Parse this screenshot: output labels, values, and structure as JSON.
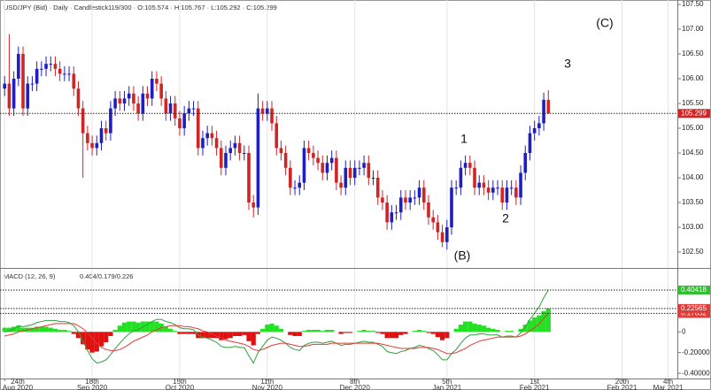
{
  "chart_data": [
    {
      "type": "candlestick",
      "title": "USD/JPY (Bid) · Daily · Candlestick",
      "subtitle": "119/300 · O:105.574 · H:105.767 · L:105.292 · C:105.299",
      "up_color": "#1f1fc0",
      "down_color": "#d02525",
      "open": [
        105.8,
        105.9,
        105.4,
        106.0,
        106.5,
        105.4,
        105.9,
        105.9,
        106.2,
        106.2,
        106.3,
        106.3,
        106.2,
        106.1,
        106.1,
        106.1,
        105.8,
        105.4,
        104.9,
        104.7,
        104.6,
        104.7,
        105.0,
        104.9,
        105.4,
        105.6,
        105.5,
        105.6,
        105.7,
        105.5,
        105.3,
        105.7,
        105.6,
        106.0,
        105.9,
        105.6,
        105.3,
        105.5,
        105.2,
        105.0,
        105.3,
        105.4,
        105.4,
        104.6,
        104.8,
        104.9,
        104.8,
        104.6,
        104.2,
        104.5,
        104.6,
        104.7,
        104.5,
        104.5,
        103.5,
        103.4,
        105.4,
        105.3,
        105.4,
        105.1,
        104.6,
        104.5,
        104.2,
        103.8,
        103.8,
        103.9,
        104.6,
        104.5,
        104.4,
        104.3,
        104.1,
        104.3,
        104.4,
        103.9,
        103.8,
        104.2,
        104.0,
        104.2,
        104.2,
        104.3,
        104.0,
        104.0,
        103.6,
        103.5,
        103.1,
        103.3,
        103.3,
        103.6,
        103.5,
        103.6,
        103.6,
        103.8,
        103.5,
        103.2,
        103.1,
        102.9,
        102.7,
        103.0,
        103.8,
        103.8,
        104.2,
        104.3,
        104.2,
        103.8,
        103.9,
        103.8,
        103.7,
        103.8,
        103.8,
        103.5,
        103.8,
        103.8,
        103.6,
        104.1,
        104.5,
        104.9,
        105.0,
        105.1,
        105.574
      ],
      "high": [
        106.05,
        106.9,
        106.15,
        106.65,
        106.65,
        106.05,
        106.05,
        106.35,
        106.35,
        106.45,
        106.45,
        106.45,
        106.35,
        106.25,
        106.25,
        106.25,
        105.95,
        105.55,
        105.05,
        104.85,
        104.85,
        105.15,
        105.15,
        105.55,
        105.75,
        105.75,
        105.75,
        105.85,
        105.85,
        105.65,
        105.85,
        105.85,
        106.15,
        106.15,
        106.05,
        105.75,
        105.65,
        105.65,
        105.35,
        105.45,
        105.55,
        105.55,
        105.55,
        104.95,
        105.05,
        105.05,
        104.95,
        104.75,
        104.65,
        104.75,
        104.85,
        104.85,
        104.65,
        104.65,
        103.65,
        105.7,
        105.55,
        105.55,
        105.55,
        105.25,
        104.75,
        104.65,
        104.35,
        103.95,
        104.05,
        104.75,
        104.75,
        104.65,
        104.55,
        104.45,
        104.45,
        104.55,
        104.55,
        104.05,
        104.35,
        104.35,
        104.35,
        104.35,
        104.45,
        104.45,
        104.15,
        104.15,
        103.75,
        103.65,
        103.45,
        103.45,
        103.75,
        103.75,
        103.75,
        103.75,
        103.95,
        103.95,
        103.65,
        103.35,
        103.25,
        103.05,
        103.15,
        103.95,
        103.95,
        104.35,
        104.45,
        104.45,
        104.35,
        104.05,
        104.05,
        103.95,
        103.95,
        103.95,
        103.95,
        103.95,
        103.95,
        103.95,
        104.25,
        104.65,
        105.05,
        105.15,
        105.25,
        105.72,
        105.767
      ],
      "low": [
        105.65,
        105.25,
        105.25,
        105.85,
        105.25,
        105.25,
        105.75,
        105.75,
        106.05,
        106.05,
        106.15,
        106.05,
        105.95,
        105.95,
        105.95,
        105.65,
        105.25,
        104.0,
        104.55,
        104.45,
        104.45,
        104.55,
        104.75,
        104.75,
        105.25,
        105.35,
        105.35,
        105.45,
        105.35,
        105.15,
        105.15,
        105.45,
        105.45,
        105.75,
        105.45,
        105.15,
        105.15,
        105.05,
        104.85,
        104.85,
        105.15,
        105.25,
        104.45,
        104.45,
        104.65,
        104.65,
        104.45,
        104.05,
        104.05,
        104.35,
        104.45,
        104.35,
        104.35,
        103.35,
        103.2,
        103.25,
        105.15,
        105.15,
        104.95,
        104.45,
        104.35,
        104.05,
        103.65,
        103.65,
        103.65,
        103.75,
        104.35,
        104.25,
        104.15,
        103.95,
        103.95,
        104.15,
        103.75,
        103.65,
        103.65,
        103.85,
        103.85,
        104.05,
        104.05,
        103.85,
        103.85,
        103.45,
        103.35,
        102.95,
        102.95,
        103.15,
        103.15,
        103.35,
        103.35,
        103.45,
        103.45,
        103.35,
        103.05,
        102.95,
        102.75,
        102.6,
        102.55,
        102.85,
        103.65,
        103.65,
        104.05,
        104.05,
        103.65,
        103.65,
        103.65,
        103.55,
        103.55,
        103.65,
        103.35,
        103.35,
        103.65,
        103.45,
        103.45,
        103.95,
        104.35,
        104.75,
        104.85,
        104.95,
        105.292
      ],
      "close": [
        105.9,
        105.4,
        106.0,
        106.5,
        105.4,
        105.9,
        105.9,
        106.2,
        106.2,
        106.3,
        106.3,
        106.2,
        106.1,
        106.1,
        106.1,
        105.8,
        105.4,
        104.9,
        104.7,
        104.6,
        104.7,
        105.0,
        104.9,
        105.4,
        105.6,
        105.5,
        105.6,
        105.7,
        105.5,
        105.3,
        105.7,
        105.6,
        106.0,
        105.9,
        105.6,
        105.3,
        105.5,
        105.2,
        105.0,
        105.3,
        105.4,
        105.4,
        104.6,
        104.8,
        104.9,
        104.8,
        104.6,
        104.2,
        104.5,
        104.6,
        104.7,
        104.5,
        104.5,
        103.5,
        103.4,
        105.4,
        105.3,
        105.4,
        105.1,
        104.6,
        104.5,
        104.2,
        103.8,
        103.8,
        103.9,
        104.6,
        104.5,
        104.4,
        104.3,
        104.1,
        104.3,
        104.4,
        103.9,
        103.8,
        104.2,
        104.0,
        104.2,
        104.2,
        104.3,
        104.0,
        104.0,
        103.6,
        103.5,
        103.1,
        103.3,
        103.3,
        103.6,
        103.5,
        103.6,
        103.6,
        103.8,
        103.5,
        103.2,
        103.1,
        102.9,
        102.7,
        103.0,
        103.8,
        103.8,
        104.2,
        104.3,
        104.2,
        103.8,
        103.9,
        103.8,
        103.7,
        103.8,
        103.8,
        103.5,
        103.8,
        103.8,
        103.6,
        104.1,
        104.5,
        104.9,
        105.0,
        105.1,
        105.574,
        105.299
      ],
      "last_price_line": true,
      "annotations": [
        "(C)",
        "3",
        "1",
        "2",
        "(B)"
      ],
      "xlim": [
        -1,
        146
      ],
      "ylim": [
        102.5,
        107.5
      ],
      "yticks": [
        {
          "value": 102.5,
          "label": "102.50"
        },
        {
          "value": 103,
          "label": "103.00"
        },
        {
          "value": 103.5,
          "label": "103.50"
        },
        {
          "value": 104,
          "label": "104.00"
        },
        {
          "value": 104.5,
          "label": "104.50"
        },
        {
          "value": 105,
          "label": "105.00"
        },
        {
          "value": 105.5,
          "label": "105.50"
        },
        {
          "value": 106,
          "label": "106.00"
        },
        {
          "value": 106.5,
          "label": "106.50"
        },
        {
          "value": 107,
          "label": "107.00"
        },
        {
          "value": 107.5,
          "label": "107.50"
        }
      ],
      "grid": true
    },
    {
      "type": "macd",
      "title": "MACD (12, 26, 9)",
      "subtitle": "0.404/0.179/0.226",
      "series": [
        {
          "style": "line",
          "color": "#2e9e3e",
          "values": [
            0.0,
            0.01,
            0.03,
            0.06,
            0.05,
            0.06,
            0.07,
            0.09,
            0.1,
            0.11,
            0.11,
            0.11,
            0.1,
            0.1,
            0.09,
            0.06,
            0.0,
            -0.09,
            -0.18,
            -0.26,
            -0.3,
            -0.29,
            -0.27,
            -0.22,
            -0.16,
            -0.11,
            -0.06,
            -0.02,
            0.01,
            0.02,
            0.05,
            0.07,
            0.1,
            0.12,
            0.12,
            0.1,
            0.09,
            0.07,
            0.04,
            0.03,
            0.03,
            0.02,
            -0.03,
            -0.05,
            -0.06,
            -0.08,
            -0.1,
            -0.14,
            -0.15,
            -0.15,
            -0.14,
            -0.15,
            -0.15,
            -0.23,
            -0.3,
            -0.2,
            -0.14,
            -0.08,
            -0.05,
            -0.06,
            -0.08,
            -0.11,
            -0.15,
            -0.17,
            -0.18,
            -0.13,
            -0.11,
            -0.1,
            -0.1,
            -0.11,
            -0.1,
            -0.09,
            -0.11,
            -0.13,
            -0.12,
            -0.12,
            -0.11,
            -0.1,
            -0.09,
            -0.1,
            -0.1,
            -0.12,
            -0.14,
            -0.19,
            -0.2,
            -0.21,
            -0.19,
            -0.18,
            -0.16,
            -0.15,
            -0.13,
            -0.14,
            -0.16,
            -0.18,
            -0.22,
            -0.27,
            -0.27,
            -0.21,
            -0.17,
            -0.11,
            -0.06,
            -0.03,
            -0.03,
            -0.02,
            -0.02,
            -0.03,
            -0.03,
            -0.03,
            -0.05,
            -0.04,
            -0.04,
            -0.05,
            -0.01,
            0.05,
            0.12,
            0.18,
            0.24,
            0.33,
            0.40418
          ]
        },
        {
          "style": "line",
          "color": "#e53935",
          "values": [
            -0.04,
            -0.03,
            -0.02,
            0.0,
            0.01,
            0.02,
            0.03,
            0.04,
            0.05,
            0.06,
            0.07,
            0.08,
            0.08,
            0.08,
            0.08,
            0.08,
            0.06,
            0.03,
            -0.01,
            -0.06,
            -0.11,
            -0.15,
            -0.17,
            -0.18,
            -0.18,
            -0.17,
            -0.15,
            -0.12,
            -0.09,
            -0.07,
            -0.05,
            -0.03,
            0.0,
            0.02,
            0.04,
            0.05,
            0.06,
            0.06,
            0.06,
            0.05,
            0.05,
            0.04,
            0.03,
            0.01,
            0.0,
            -0.02,
            -0.04,
            -0.06,
            -0.08,
            -0.09,
            -0.1,
            -0.11,
            -0.12,
            -0.14,
            -0.17,
            -0.18,
            -0.17,
            -0.15,
            -0.13,
            -0.12,
            -0.11,
            -0.11,
            -0.12,
            -0.13,
            -0.14,
            -0.14,
            -0.13,
            -0.12,
            -0.12,
            -0.12,
            -0.12,
            -0.11,
            -0.11,
            -0.11,
            -0.11,
            -0.11,
            -0.11,
            -0.11,
            -0.11,
            -0.11,
            -0.11,
            -0.11,
            -0.12,
            -0.13,
            -0.14,
            -0.15,
            -0.16,
            -0.16,
            -0.16,
            -0.16,
            -0.15,
            -0.15,
            -0.15,
            -0.16,
            -0.17,
            -0.19,
            -0.21,
            -0.21,
            -0.2,
            -0.18,
            -0.16,
            -0.13,
            -0.11,
            -0.09,
            -0.08,
            -0.07,
            -0.06,
            -0.05,
            -0.05,
            -0.05,
            -0.05,
            -0.05,
            -0.04,
            -0.02,
            0.01,
            0.04,
            0.08,
            0.13,
            0.17852
          ]
        },
        {
          "style": "histogram",
          "color": "#22e022",
          "negative_color": "#e01010",
          "values": [
            0.04,
            0.04,
            0.05,
            0.06,
            0.04,
            0.04,
            0.04,
            0.05,
            0.05,
            0.05,
            0.04,
            0.03,
            0.02,
            0.02,
            0.01,
            -0.02,
            -0.06,
            -0.12,
            -0.17,
            -0.2,
            -0.19,
            -0.14,
            -0.1,
            -0.04,
            0.02,
            0.06,
            0.09,
            0.1,
            0.1,
            0.09,
            0.1,
            0.1,
            0.1,
            0.1,
            0.08,
            0.05,
            0.03,
            0.01,
            -0.02,
            -0.02,
            -0.02,
            -0.02,
            -0.06,
            -0.06,
            -0.06,
            -0.06,
            -0.06,
            -0.08,
            -0.07,
            -0.06,
            -0.04,
            -0.04,
            -0.03,
            -0.09,
            -0.13,
            -0.02,
            0.03,
            0.07,
            0.08,
            0.06,
            0.03,
            0.0,
            -0.03,
            -0.04,
            -0.04,
            0.01,
            0.02,
            0.02,
            0.02,
            0.01,
            0.02,
            0.02,
            0.0,
            -0.02,
            -0.01,
            -0.01,
            0.0,
            0.01,
            0.02,
            0.01,
            0.01,
            -0.01,
            -0.02,
            -0.06,
            -0.06,
            -0.06,
            -0.03,
            -0.02,
            0.0,
            0.01,
            0.02,
            0.01,
            -0.01,
            -0.02,
            -0.05,
            -0.08,
            -0.06,
            0.0,
            0.03,
            0.07,
            0.1,
            0.1,
            0.08,
            0.07,
            0.06,
            0.04,
            0.03,
            0.02,
            0.0,
            0.01,
            0.01,
            0.0,
            0.03,
            0.07,
            0.11,
            0.14,
            0.16,
            0.2,
            0.22565
          ]
        }
      ],
      "xlim": [
        -1,
        146
      ],
      "xticks": [
        {
          "value": 0,
          "label": "24th\nAug 2020"
        },
        {
          "value": 19,
          "label": "18th\nSep 2020"
        },
        {
          "value": 38,
          "label": "15th\nOct 2020"
        },
        {
          "value": 57,
          "label": "11th\nNov 2020"
        },
        {
          "value": 76,
          "label": "8th\nDec 2020"
        },
        {
          "value": 96,
          "label": "5th\nJan 2021"
        },
        {
          "value": 115,
          "label": "1st\nFeb 2021"
        },
        {
          "value": 134,
          "label": "20th\nFeb 2021"
        },
        {
          "value": 144,
          "label": "4th\nMar 2021"
        }
      ],
      "ylim": [
        -0.45,
        0.6
      ],
      "yticks": [
        {
          "value": 0.2,
          "label": "0.20000"
        },
        0,
        {
          "value": -0.2,
          "label": "-0.20000"
        },
        {
          "value": -0.4,
          "label": "-0.40000"
        }
      ],
      "grid": true
    }
  ]
}
